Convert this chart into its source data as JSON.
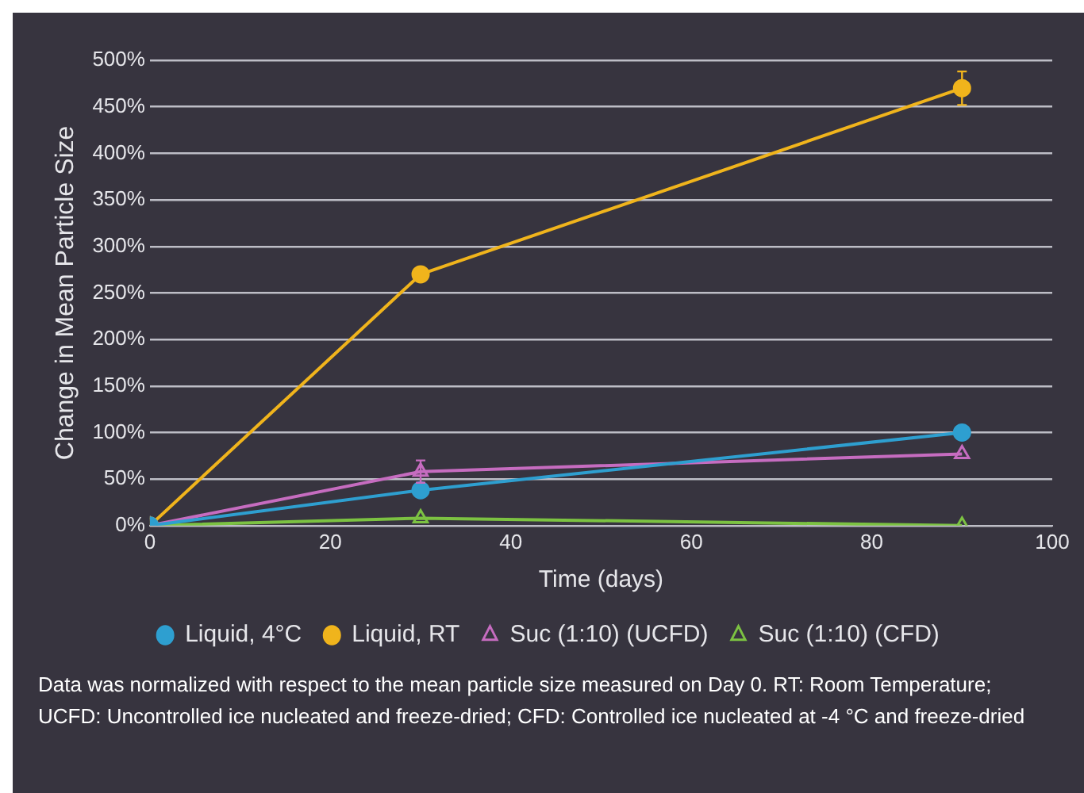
{
  "chart_data": {
    "type": "line",
    "xlabel": "Time (days)",
    "ylabel": "Change in Mean Particle Size",
    "xlim": [
      0,
      100
    ],
    "xticks": [
      0,
      20,
      40,
      60,
      80,
      100
    ],
    "ylim": [
      0,
      500
    ],
    "yticks": [
      {
        "value": 0,
        "label": "0%"
      },
      {
        "value": 50,
        "label": "50%"
      },
      {
        "value": 100,
        "label": "100%"
      },
      {
        "value": 150,
        "label": "150%"
      },
      {
        "value": 200,
        "label": "200%"
      },
      {
        "value": 250,
        "label": "250%"
      },
      {
        "value": 300,
        "label": "300%"
      },
      {
        "value": 350,
        "label": "350%"
      },
      {
        "value": 400,
        "label": "400%"
      },
      {
        "value": 450,
        "label": "450%"
      },
      {
        "value": 500,
        "label": "500%"
      }
    ],
    "grid": "y",
    "legend": "bottom",
    "x": [
      0,
      30,
      90
    ],
    "series": [
      {
        "name": "Liquid, 4°C",
        "color": "#2e9fd0",
        "marker": "circle",
        "values": [
          0,
          38,
          100
        ]
      },
      {
        "name": "Liquid, RT",
        "color": "#f0b41c",
        "marker": "circle",
        "values": [
          0,
          270,
          470
        ],
        "errors": [
          null,
          null,
          18
        ]
      },
      {
        "name": "Suc (1:10) (UCFD)",
        "color": "#c66cc0",
        "marker": "triangle",
        "values": [
          0,
          58,
          77
        ],
        "errors": [
          null,
          12,
          null
        ]
      },
      {
        "name": "Suc (1:10) (CFD)",
        "color": "#7cc242",
        "marker": "triangle",
        "values": [
          0,
          8,
          0
        ]
      }
    ],
    "annotations": [
      "Data was normalized with respect to the mean particle size measured on Day 0. RT: Room Temperature; UCFD: Uncontrolled ice nucleated and freeze-dried; CFD: Controlled ice nucleated at -4 °C and freeze-dried"
    ]
  }
}
